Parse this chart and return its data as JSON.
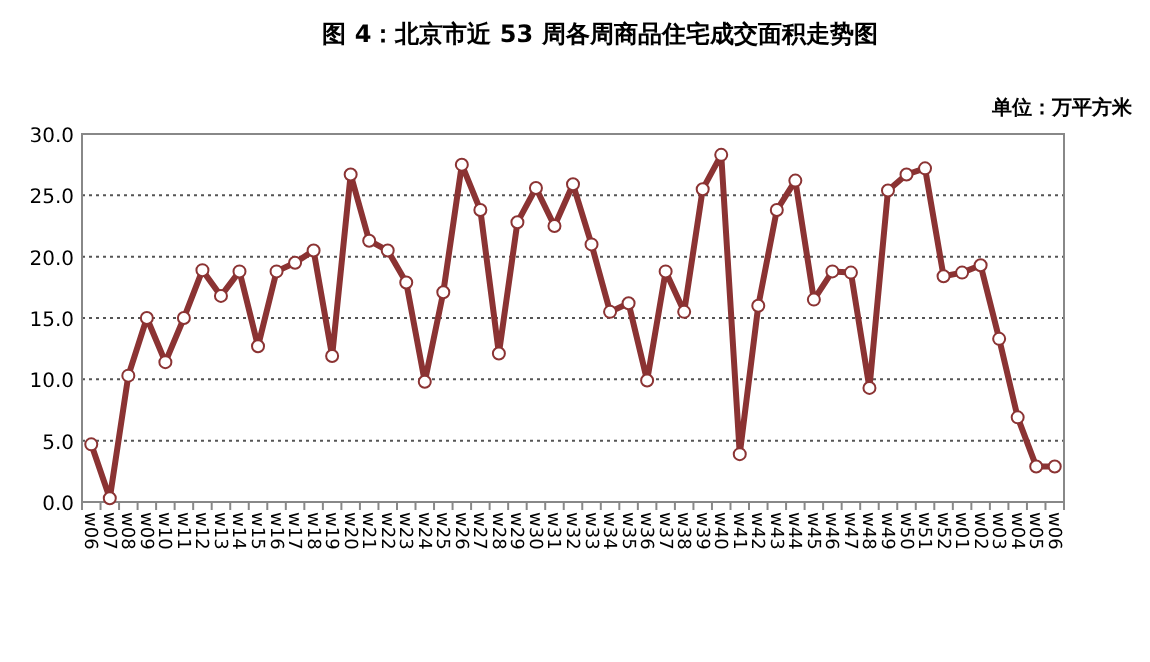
{
  "chart_data": {
    "type": "line",
    "title": "图 4：北京市近 53 周各周商品住宅成交面积走势图",
    "annotations": [
      "单位：万平方米"
    ],
    "categories": [
      "w06",
      "w07",
      "w08",
      "w09",
      "w10",
      "w11",
      "w12",
      "w13",
      "w14",
      "w15",
      "w16",
      "w17",
      "w18",
      "w19",
      "w20",
      "w21",
      "w22",
      "w23",
      "w24",
      "w25",
      "w26",
      "w27",
      "w28",
      "w29",
      "w30",
      "w31",
      "w32",
      "w33",
      "w34",
      "w35",
      "w36",
      "w37",
      "w38",
      "w39",
      "w40",
      "w41",
      "w42",
      "w43",
      "w44",
      "w45",
      "w46",
      "w47",
      "w48",
      "w49",
      "w50",
      "w51",
      "w52",
      "w01",
      "w02",
      "w03",
      "w04",
      "w05",
      "w06"
    ],
    "series": [
      {
        "color": "#8b3333",
        "values": [
          4.7,
          0.3,
          10.3,
          15.0,
          11.4,
          15.0,
          18.9,
          16.8,
          18.8,
          12.7,
          18.8,
          19.5,
          20.5,
          11.9,
          26.7,
          21.3,
          20.5,
          17.9,
          9.8,
          17.1,
          27.5,
          23.8,
          12.1,
          22.8,
          25.6,
          22.5,
          25.9,
          21.0,
          15.5,
          16.2,
          9.9,
          18.8,
          15.5,
          25.5,
          28.3,
          3.9,
          16.0,
          23.8,
          26.2,
          16.5,
          18.8,
          18.7,
          9.3,
          25.4,
          26.7,
          27.2,
          18.4,
          18.7,
          19.3,
          13.3,
          6.9,
          2.9,
          2.9
        ]
      }
    ],
    "ylim": [
      0,
      30
    ],
    "yticks": [
      {
        "value": 0,
        "label": "0.0"
      },
      {
        "value": 5,
        "label": "5.0"
      },
      {
        "value": 10,
        "label": "10.0"
      },
      {
        "value": 15,
        "label": "15.0"
      },
      {
        "value": 20,
        "label": "20.0"
      },
      {
        "value": 25,
        "label": "25.0"
      },
      {
        "value": 30,
        "label": "30.0"
      }
    ],
    "grid": "y",
    "marker": "circle",
    "line_style": "solid"
  }
}
